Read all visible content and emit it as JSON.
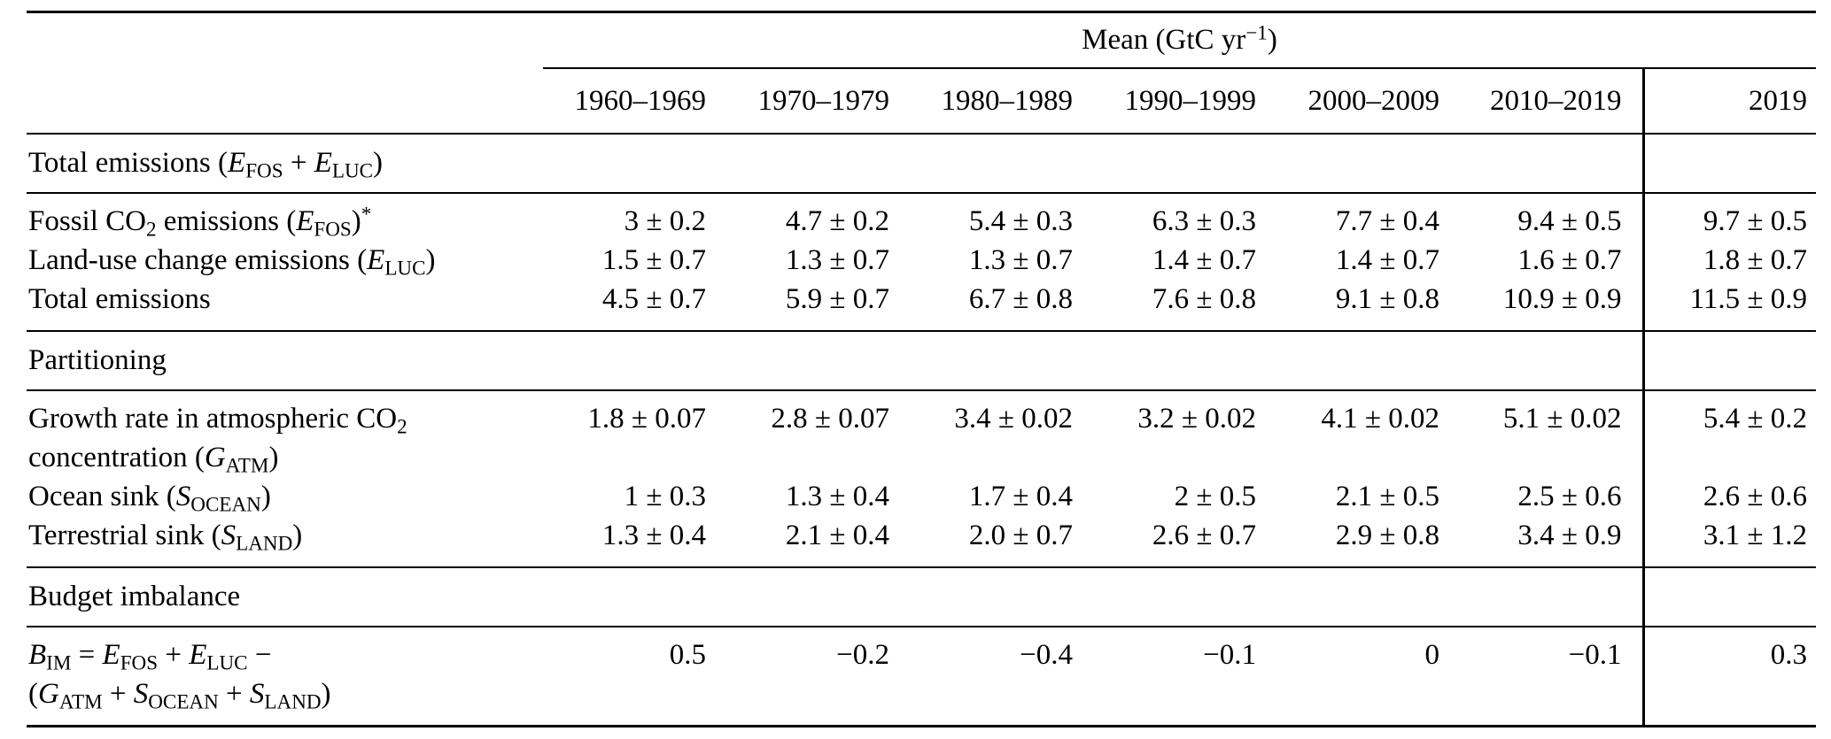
{
  "colors": {
    "text": "#000000",
    "background": "#ffffff",
    "rule": "#000000"
  },
  "table": {
    "unit_header": [
      {
        "t": "Mean (GtC yr"
      },
      {
        "t": "−1",
        "s": "sup"
      },
      {
        "t": ")"
      }
    ],
    "columns": [
      "1960–1969",
      "1970–1979",
      "1980–1989",
      "1990–1999",
      "2000–2009",
      "2010–2019",
      "2019"
    ],
    "sections": [
      {
        "title": [
          {
            "t": "Total emissions ("
          },
          {
            "t": "E",
            "s": "i"
          },
          {
            "t": "FOS",
            "s": "sub"
          },
          {
            "t": " + "
          },
          {
            "t": "E",
            "s": "i"
          },
          {
            "t": "LUC",
            "s": "sub"
          },
          {
            "t": ")"
          }
        ],
        "rows": [
          {
            "label": [
              {
                "t": "Fossil CO"
              },
              {
                "t": "2",
                "s": "sub"
              },
              {
                "t": " emissions ("
              },
              {
                "t": "E",
                "s": "i"
              },
              {
                "t": "FOS",
                "s": "sub"
              },
              {
                "t": ")"
              },
              {
                "t": "*",
                "s": "sup"
              }
            ],
            "values": [
              "3 ± 0.2",
              "4.7 ± 0.2",
              "5.4 ± 0.3",
              "6.3 ± 0.3",
              "7.7 ± 0.4",
              "9.4 ± 0.5",
              "9.7 ± 0.5"
            ]
          },
          {
            "label": [
              {
                "t": "Land-use change emissions ("
              },
              {
                "t": "E",
                "s": "i"
              },
              {
                "t": "LUC",
                "s": "sub"
              },
              {
                "t": ")"
              }
            ],
            "values": [
              "1.5 ± 0.7",
              "1.3 ± 0.7",
              "1.3 ± 0.7",
              "1.4 ± 0.7",
              "1.4 ± 0.7",
              "1.6 ± 0.7",
              "1.8 ± 0.7"
            ]
          },
          {
            "label": [
              {
                "t": "Total emissions"
              }
            ],
            "values": [
              "4.5 ± 0.7",
              "5.9 ± 0.7",
              "6.7 ± 0.8",
              "7.6 ± 0.8",
              "9.1 ± 0.8",
              "10.9 ± 0.9",
              "11.5 ± 0.9"
            ]
          }
        ]
      },
      {
        "title": [
          {
            "t": "Partitioning"
          }
        ],
        "rows": [
          {
            "label": [
              {
                "t": "Growth rate in atmospheric CO"
              },
              {
                "t": "2",
                "s": "sub"
              },
              {
                "s": "br"
              },
              {
                "t": "concentration ("
              },
              {
                "t": "G",
                "s": "i"
              },
              {
                "t": "ATM",
                "s": "sub"
              },
              {
                "t": ")"
              }
            ],
            "values": [
              "1.8 ± 0.07",
              "2.8 ± 0.07",
              "3.4 ± 0.02",
              "3.2 ± 0.02",
              "4.1 ± 0.02",
              "5.1 ± 0.02",
              "5.4 ± 0.2"
            ]
          },
          {
            "label": [
              {
                "t": "Ocean sink ("
              },
              {
                "t": "S",
                "s": "i"
              },
              {
                "t": "OCEAN",
                "s": "sub"
              },
              {
                "t": ")"
              }
            ],
            "values": [
              "1 ± 0.3",
              "1.3 ± 0.4",
              "1.7 ± 0.4",
              "2 ± 0.5",
              "2.1 ± 0.5",
              "2.5 ± 0.6",
              "2.6 ± 0.6"
            ]
          },
          {
            "label": [
              {
                "t": "Terrestrial sink ("
              },
              {
                "t": "S",
                "s": "i"
              },
              {
                "t": "LAND",
                "s": "sub"
              },
              {
                "t": ")"
              }
            ],
            "values": [
              "1.3 ± 0.4",
              "2.1 ± 0.4",
              "2.0 ± 0.7",
              "2.6 ± 0.7",
              "2.9 ± 0.8",
              "3.4 ± 0.9",
              "3.1 ± 1.2"
            ]
          }
        ]
      },
      {
        "title": [
          {
            "t": "Budget imbalance"
          }
        ],
        "rows": [
          {
            "label": [
              {
                "t": "B",
                "s": "i"
              },
              {
                "t": "IM",
                "s": "sub"
              },
              {
                "t": " = "
              },
              {
                "t": "E",
                "s": "i"
              },
              {
                "t": "FOS",
                "s": "sub"
              },
              {
                "t": " + "
              },
              {
                "t": "E",
                "s": "i"
              },
              {
                "t": "LUC",
                "s": "sub"
              },
              {
                "t": " −"
              },
              {
                "s": "br"
              },
              {
                "t": "("
              },
              {
                "t": "G",
                "s": "i"
              },
              {
                "t": "ATM",
                "s": "sub"
              },
              {
                "t": " + "
              },
              {
                "t": "S",
                "s": "i"
              },
              {
                "t": "OCEAN",
                "s": "sub"
              },
              {
                "t": " + "
              },
              {
                "t": "S",
                "s": "i"
              },
              {
                "t": "LAND",
                "s": "sub"
              },
              {
                "t": ")"
              }
            ],
            "values": [
              "0.5",
              "−0.2",
              "−0.4",
              "−0.1",
              "0",
              "−0.1",
              "0.3"
            ]
          }
        ]
      }
    ]
  }
}
